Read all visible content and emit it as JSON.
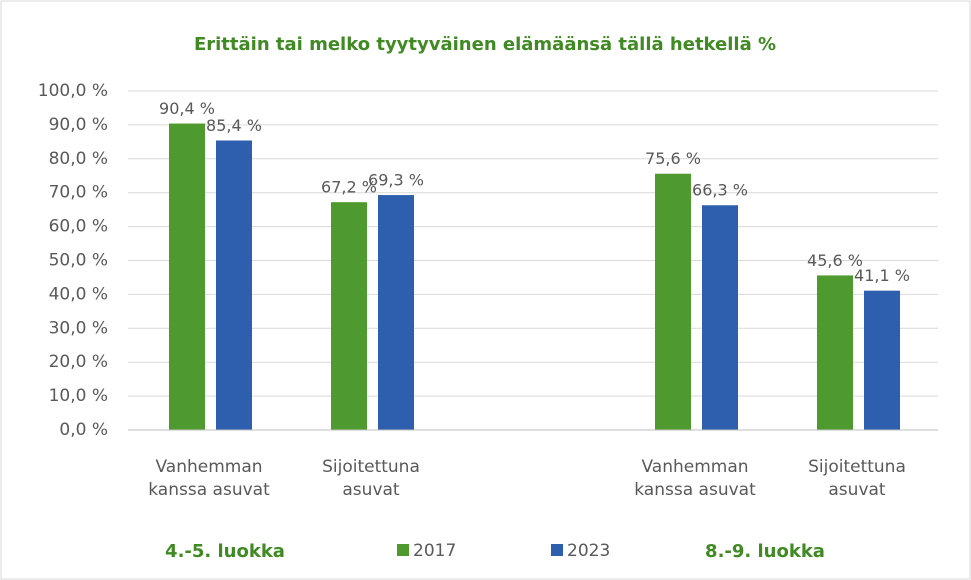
{
  "chart_data": {
    "type": "bar",
    "title": "Erittäin tai melko tyytyväinen elämäänsä tällä hetkellä %",
    "categories": [
      "Vanhemman kanssa asuvat",
      "Sijoitettuna asuvat",
      null,
      "Vanhemman kanssa asuvat",
      "Sijoitettuna asuvat"
    ],
    "group_labels": [
      "4.-5. luokka",
      "8.-9. luokka"
    ],
    "series": [
      {
        "name": "2017",
        "color": "#4f9a2f",
        "values": [
          90.4,
          67.2,
          null,
          75.6,
          45.6
        ],
        "value_labels": [
          "90,4 %",
          "67,2 %",
          null,
          "75,6 %",
          "45,6 %"
        ]
      },
      {
        "name": "2023",
        "color": "#2e5fae",
        "values": [
          85.4,
          69.3,
          null,
          66.3,
          41.1
        ],
        "value_labels": [
          "85,4 %",
          "69,3 %",
          null,
          "66,3 %",
          "41,1 %"
        ]
      }
    ],
    "ylim": [
      0,
      100
    ],
    "yticks": [
      {
        "value": 0,
        "label": "0,0 %"
      },
      {
        "value": 10,
        "label": "10,0 %"
      },
      {
        "value": 20,
        "label": "20,0 %"
      },
      {
        "value": 30,
        "label": "30,0 %"
      },
      {
        "value": 40,
        "label": "40,0 %"
      },
      {
        "value": 50,
        "label": "50,0 %"
      },
      {
        "value": 60,
        "label": "60,0 %"
      },
      {
        "value": 70,
        "label": "70,0 %"
      },
      {
        "value": 80,
        "label": "80,0 %"
      },
      {
        "value": 90,
        "label": "90,0 %"
      },
      {
        "value": 100,
        "label": "100,0 %"
      }
    ],
    "grid": true,
    "legend": "bottom"
  }
}
